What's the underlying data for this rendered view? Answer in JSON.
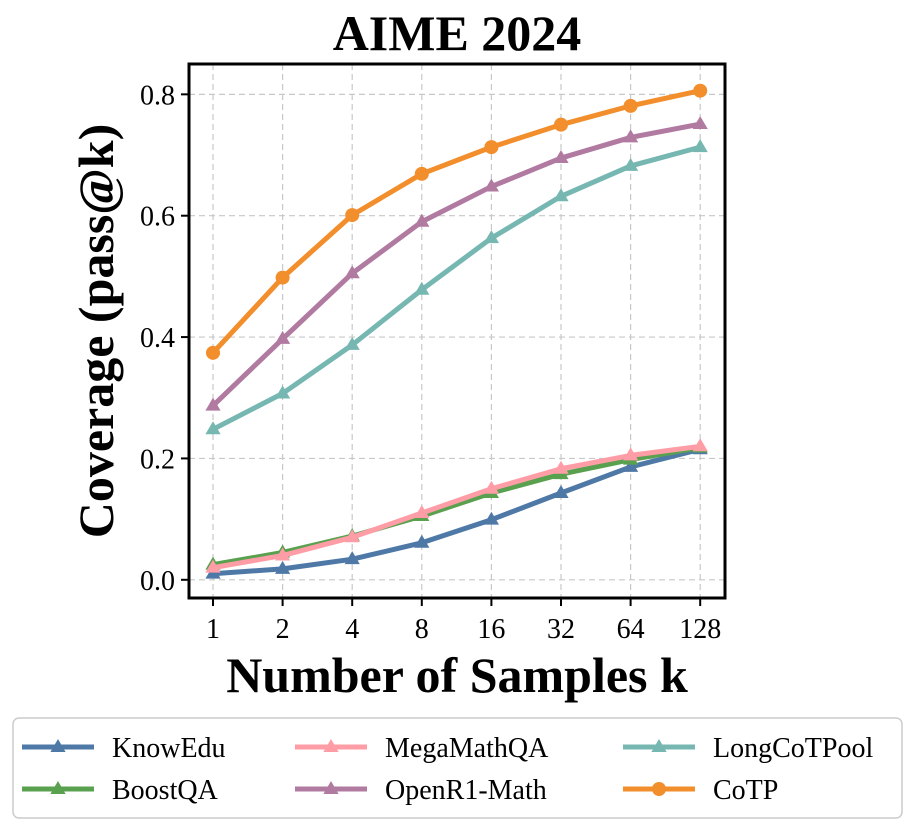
{
  "chart_data": {
    "type": "line",
    "title": "AIME 2024",
    "xlabel": "Number of Samples k",
    "ylabel": "Coverage (pass@k)",
    "categories": [
      "1",
      "2",
      "4",
      "8",
      "16",
      "32",
      "64",
      "128"
    ],
    "ylim": [
      -0.03,
      0.85
    ],
    "yticks": [
      0.0,
      0.2,
      0.4,
      0.6,
      0.8
    ],
    "ytick_labels": [
      "0.0",
      "0.2",
      "0.4",
      "0.6",
      "0.8"
    ],
    "grid": true,
    "legend_position": "bottom",
    "series": [
      {
        "name": "KnowEdu",
        "color": "#4e79a7",
        "marker": "triangle",
        "values": [
          0.01,
          0.018,
          0.034,
          0.061,
          0.099,
          0.143,
          0.186,
          0.215
        ]
      },
      {
        "name": "BoostQA",
        "color": "#59a14f",
        "marker": "triangle",
        "values": [
          0.025,
          0.045,
          0.072,
          0.105,
          0.143,
          0.174,
          0.198,
          0.218
        ]
      },
      {
        "name": "MegaMathQA",
        "color": "#ff9da7",
        "marker": "triangle",
        "values": [
          0.02,
          0.04,
          0.07,
          0.11,
          0.15,
          0.183,
          0.205,
          0.22
        ]
      },
      {
        "name": "OpenR1-Math",
        "color": "#b07aa1",
        "marker": "triangle",
        "values": [
          0.287,
          0.397,
          0.505,
          0.59,
          0.648,
          0.695,
          0.729,
          0.751
        ]
      },
      {
        "name": "LongCoTPool",
        "color": "#76b7b2",
        "marker": "triangle",
        "values": [
          0.248,
          0.307,
          0.387,
          0.478,
          0.563,
          0.632,
          0.682,
          0.713
        ]
      },
      {
        "name": "CoTP",
        "color": "#f28e2b",
        "marker": "circle",
        "values": [
          0.374,
          0.498,
          0.601,
          0.669,
          0.713,
          0.75,
          0.781,
          0.806
        ]
      }
    ]
  }
}
